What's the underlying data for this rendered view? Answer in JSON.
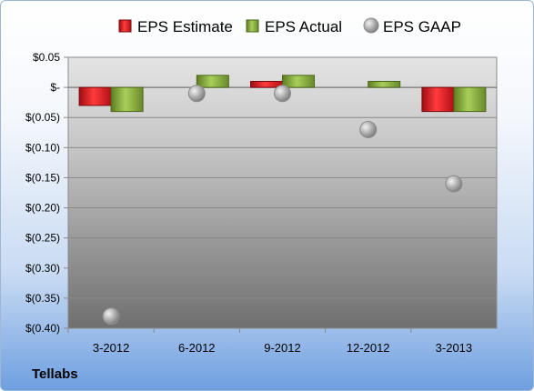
{
  "chart_data": {
    "type": "bar",
    "title": "",
    "xlabel": "",
    "ylabel": "",
    "categories": [
      "3-2012",
      "6-2012",
      "9-2012",
      "12-2012",
      "3-2013"
    ],
    "series": [
      {
        "name": "EPS Estimate",
        "kind": "bar",
        "color": "#e0141e",
        "values": [
          -0.03,
          0.0,
          0.01,
          0.0,
          -0.04
        ]
      },
      {
        "name": "EPS Actual",
        "kind": "bar",
        "color": "#8db33e",
        "values": [
          -0.04,
          0.02,
          0.02,
          0.01,
          -0.04
        ]
      },
      {
        "name": "EPS GAAP",
        "kind": "marker",
        "color": "#b4b4b4",
        "values": [
          -0.38,
          -0.01,
          -0.01,
          -0.07,
          -0.16
        ]
      }
    ],
    "ylim": [
      -0.4,
      0.05
    ],
    "yticks": [
      0.05,
      0.0,
      -0.05,
      -0.1,
      -0.15,
      -0.2,
      -0.25,
      -0.3,
      -0.35,
      -0.4
    ],
    "ytick_labels": [
      "$0.05",
      "$-",
      "$(0.05)",
      "$(0.10)",
      "$(0.15)",
      "$(0.20)",
      "$(0.25)",
      "$(0.30)",
      "$(0.35)",
      "$(0.40)"
    ],
    "grid": true,
    "legend": "top-center"
  },
  "company": "Tellabs"
}
